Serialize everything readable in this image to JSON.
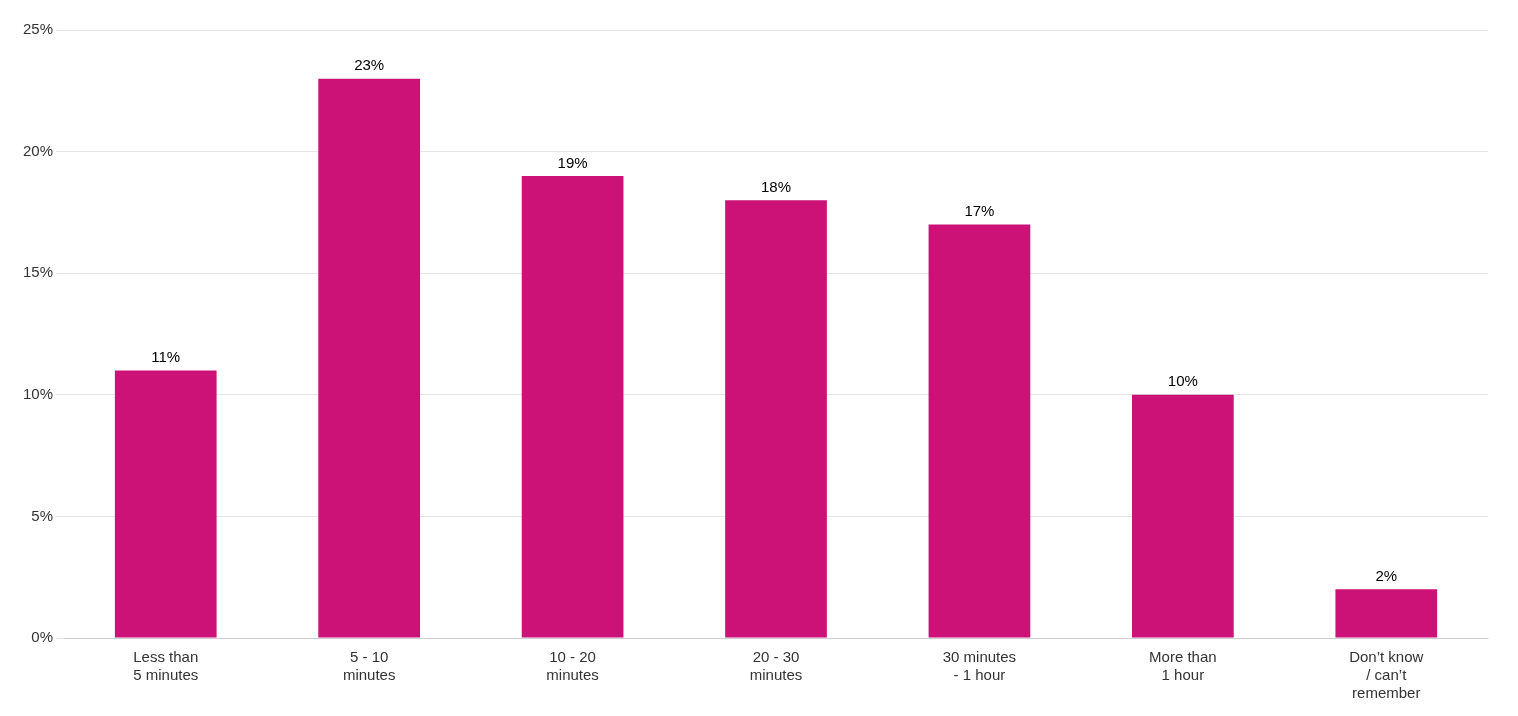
{
  "chart_data": {
    "type": "bar",
    "categories": [
      "Less than\n5 minutes",
      "5 - 10\nminutes",
      "10 - 20\nminutes",
      "20 - 30\nminutes",
      "30 minutes\n- 1 hour",
      "More than\n1 hour",
      "Don’t know\n/ can’t\nremember"
    ],
    "values": [
      11,
      23,
      19,
      18,
      17,
      10,
      2
    ],
    "value_labels": [
      "11%",
      "23%",
      "19%",
      "18%",
      "17%",
      "10%",
      "2%"
    ],
    "color": "#CC1177",
    "ylim": [
      0,
      25
    ],
    "yticks": [
      {
        "value": 0,
        "label": "0%"
      },
      {
        "value": 5,
        "label": "5%"
      },
      {
        "value": 10,
        "label": "10%"
      },
      {
        "value": 15,
        "label": "15%"
      },
      {
        "value": 20,
        "label": "20%"
      },
      {
        "value": 25,
        "label": "25%"
      }
    ],
    "grid": true,
    "data_labels": true
  }
}
